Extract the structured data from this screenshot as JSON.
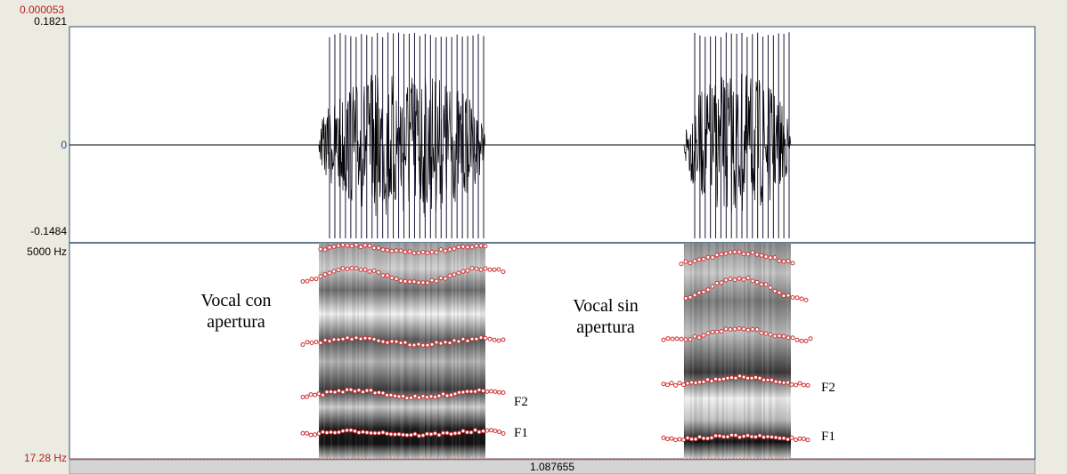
{
  "time_panel": {
    "cursor_time": "0.000053",
    "selection_duration": "1.087655"
  },
  "waveform": {
    "y_max": "0.1821",
    "y_zero": "0",
    "y_min": "-0.1484"
  },
  "spectrogram": {
    "freq_max": "5000 Hz",
    "freq_min": "17.28 Hz"
  },
  "annotations": [
    {
      "label_lines": [
        "Vocal con",
        "apertura"
      ],
      "formants": [
        "F2",
        "F1"
      ]
    },
    {
      "label_lines": [
        "Vocal sin",
        "apertura"
      ],
      "formants": [
        "F2",
        "F1"
      ]
    }
  ]
}
